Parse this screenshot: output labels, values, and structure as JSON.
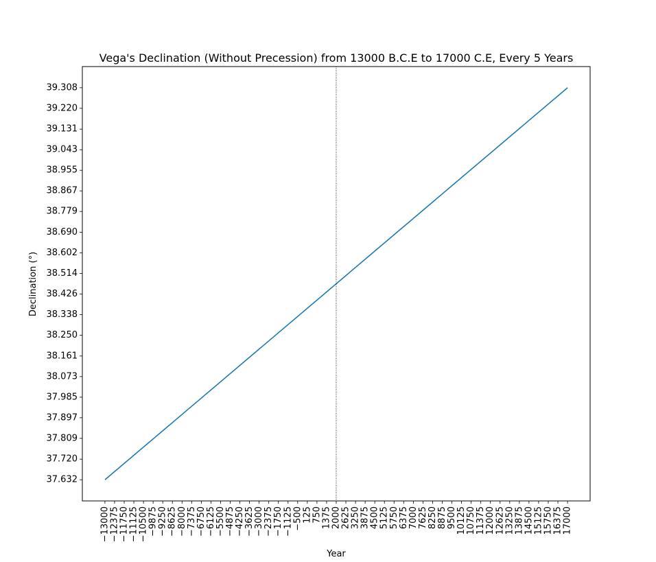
{
  "chart_data": {
    "type": "line",
    "title": "Vega's Declination (Without Precession) from 13000 B.C.E to 17000 C.E, Every 5 Years",
    "xlabel": "Year",
    "ylabel": "Declination (°)",
    "xlim": [
      -14465,
      18465
    ],
    "ylim": [
      37.5415,
      39.3985
    ],
    "x_ticks": [
      -13000,
      -12375,
      -11750,
      -11125,
      -10500,
      -9875,
      -9250,
      -8625,
      -8000,
      -7375,
      -6750,
      -6125,
      -5500,
      -4875,
      -4250,
      -3625,
      -3000,
      -2375,
      -1750,
      -1125,
      -500,
      125,
      750,
      1375,
      2000,
      2625,
      3250,
      3875,
      4500,
      5125,
      5750,
      6375,
      7000,
      7625,
      8250,
      8875,
      9500,
      10125,
      10750,
      11375,
      12000,
      12625,
      13250,
      13875,
      14500,
      15125,
      15750,
      16375,
      17000
    ],
    "y_ticks": [
      37.632,
      37.72,
      37.809,
      37.897,
      37.985,
      38.073,
      38.161,
      38.25,
      38.338,
      38.426,
      38.514,
      38.602,
      38.69,
      38.779,
      38.867,
      38.955,
      39.043,
      39.131,
      39.22,
      39.308
    ],
    "vline": {
      "x": 2000,
      "style": "dotted"
    },
    "grid": false,
    "series": [
      {
        "color": "#1f77b4",
        "x": [
          -13000,
          17000
        ],
        "y": [
          37.632,
          39.308
        ]
      }
    ]
  }
}
